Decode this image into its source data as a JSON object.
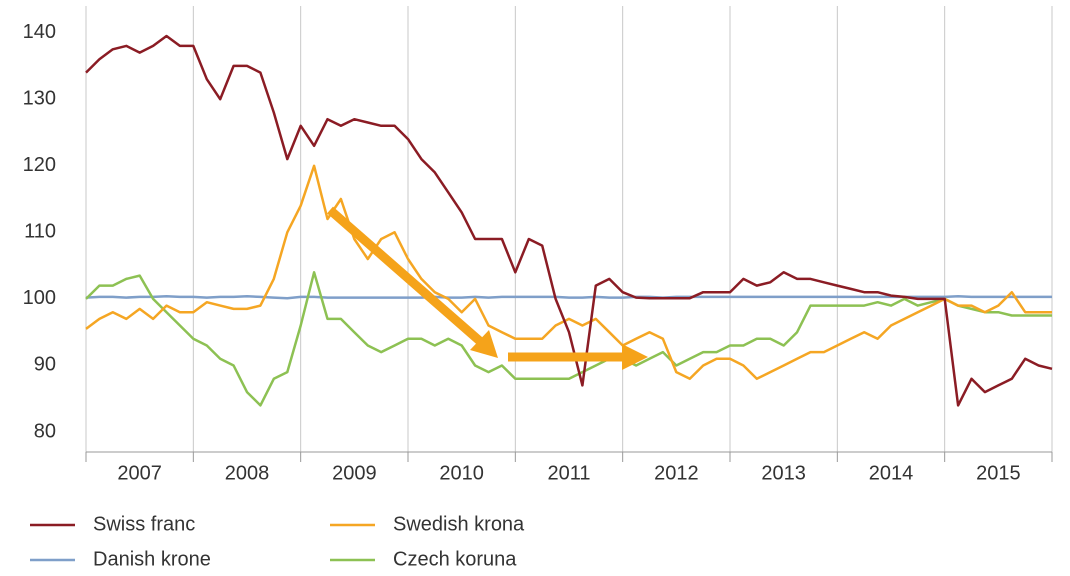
{
  "chart_data": {
    "type": "line",
    "x": [
      2007,
      2007.125,
      2007.25,
      2007.375,
      2007.5,
      2007.625,
      2007.75,
      2007.875,
      2008,
      2008.125,
      2008.25,
      2008.375,
      2008.5,
      2008.625,
      2008.75,
      2008.875,
      2009,
      2009.125,
      2009.25,
      2009.375,
      2009.5,
      2009.625,
      2009.75,
      2009.875,
      2010,
      2010.125,
      2010.25,
      2010.375,
      2010.5,
      2010.625,
      2010.75,
      2010.875,
      2011,
      2011.125,
      2011.25,
      2011.375,
      2011.5,
      2011.625,
      2011.75,
      2011.875,
      2012,
      2012.125,
      2012.25,
      2012.375,
      2012.5,
      2012.625,
      2012.75,
      2012.875,
      2013,
      2013.125,
      2013.25,
      2013.375,
      2013.5,
      2013.625,
      2013.75,
      2013.875,
      2014,
      2014.125,
      2014.25,
      2014.375,
      2014.5,
      2014.625,
      2014.75,
      2014.875,
      2015,
      2015.125,
      2015.25,
      2015.375,
      2015.5,
      2015.625,
      2015.75,
      2015.875,
      2016
    ],
    "series": [
      {
        "name": "Swiss franc",
        "color": "#8b1c24",
        "values": [
          134,
          136,
          137.5,
          138,
          137,
          138,
          139.5,
          138,
          138,
          133,
          130,
          135,
          135,
          134,
          128,
          121,
          126,
          123,
          127,
          126,
          127,
          126.5,
          126,
          126,
          124,
          121,
          119,
          116,
          113,
          109,
          109,
          109,
          104,
          109,
          108,
          100,
          95,
          87,
          102,
          103,
          101,
          100.2,
          100.1,
          100.1,
          100.1,
          100.1,
          101,
          101,
          101,
          103,
          102,
          102.5,
          104,
          103,
          103,
          102.5,
          102,
          101.5,
          101,
          101,
          100.5,
          100.3,
          100,
          100,
          100,
          84,
          88,
          86,
          87,
          88,
          91,
          90,
          89.5
        ]
      },
      {
        "name": "Danish krone",
        "color": "#7f9fc9",
        "values": [
          100.2,
          100.3,
          100.3,
          100.2,
          100.3,
          100.3,
          100.4,
          100.3,
          100.3,
          100.2,
          100.3,
          100.3,
          100.4,
          100.3,
          100.2,
          100.1,
          100.3,
          100.3,
          100.2,
          100.2,
          100.2,
          100.2,
          100.2,
          100.2,
          100.2,
          100.2,
          100.3,
          100.2,
          100.2,
          100.3,
          100.2,
          100.3,
          100.3,
          100.3,
          100.3,
          100.3,
          100.2,
          100.2,
          100.3,
          100.2,
          100.2,
          100.3,
          100.3,
          100.2,
          100.3,
          100.3,
          100.3,
          100.3,
          100.3,
          100.3,
          100.3,
          100.3,
          100.3,
          100.3,
          100.3,
          100.3,
          100.3,
          100.3,
          100.3,
          100.3,
          100.3,
          100.3,
          100.3,
          100.3,
          100.3,
          100.4,
          100.3,
          100.3,
          100.3,
          100.3,
          100.3,
          100.3,
          100.3
        ]
      },
      {
        "name": "Swedish krona",
        "color": "#f5a623",
        "values": [
          95.5,
          97,
          98,
          97,
          98.5,
          97,
          99,
          98,
          98,
          99.5,
          99,
          98.5,
          98.5,
          99,
          103,
          110,
          114,
          120,
          112,
          115,
          109,
          106,
          109,
          110,
          106,
          103,
          101,
          100,
          98,
          100,
          96,
          95,
          94,
          94,
          94,
          96,
          97,
          96,
          97,
          95,
          93,
          94,
          95,
          94,
          89,
          88,
          90,
          91,
          91,
          90,
          88,
          89,
          90,
          91,
          92,
          92,
          93,
          94,
          95,
          94,
          96,
          97,
          98,
          99,
          100,
          99,
          99,
          98,
          99,
          101,
          98,
          98,
          98
        ]
      },
      {
        "name": "Czech koruna",
        "color": "#8dc153",
        "values": [
          100,
          102,
          102,
          103,
          103.5,
          100,
          98,
          96,
          94,
          93,
          91,
          90,
          86,
          84,
          88,
          89,
          96,
          104,
          97,
          97,
          95,
          93,
          92,
          93,
          94,
          94,
          93,
          94,
          93,
          90,
          89,
          90,
          88,
          88,
          88,
          88,
          88,
          89,
          90,
          91,
          91,
          90,
          91,
          92,
          90,
          91,
          92,
          92,
          93,
          93,
          94,
          94,
          93,
          95,
          99,
          99,
          99,
          99,
          99,
          99.5,
          99,
          100,
          99,
          99.5,
          100,
          99,
          98.5,
          98,
          98,
          97.5,
          97.5,
          97.5,
          97.5
        ]
      }
    ],
    "xlim": [
      2007,
      2016
    ],
    "xgrid": [
      2007,
      2008,
      2009,
      2010,
      2011,
      2012,
      2013,
      2014,
      2015,
      2016
    ],
    "xticks": [
      {
        "value": 2007.5,
        "label": "2007"
      },
      {
        "value": 2008.5,
        "label": "2008"
      },
      {
        "value": 2009.5,
        "label": "2009"
      },
      {
        "value": 2010.5,
        "label": "2010"
      },
      {
        "value": 2011.5,
        "label": "2011"
      },
      {
        "value": 2012.5,
        "label": "2012"
      },
      {
        "value": 2013.5,
        "label": "2013"
      },
      {
        "value": 2014.5,
        "label": "2014"
      },
      {
        "value": 2015.5,
        "label": "2015"
      }
    ],
    "ylim": [
      77,
      144
    ],
    "yticks": [
      80,
      90,
      100,
      110,
      120,
      130,
      140
    ],
    "grid": "x"
  }
}
